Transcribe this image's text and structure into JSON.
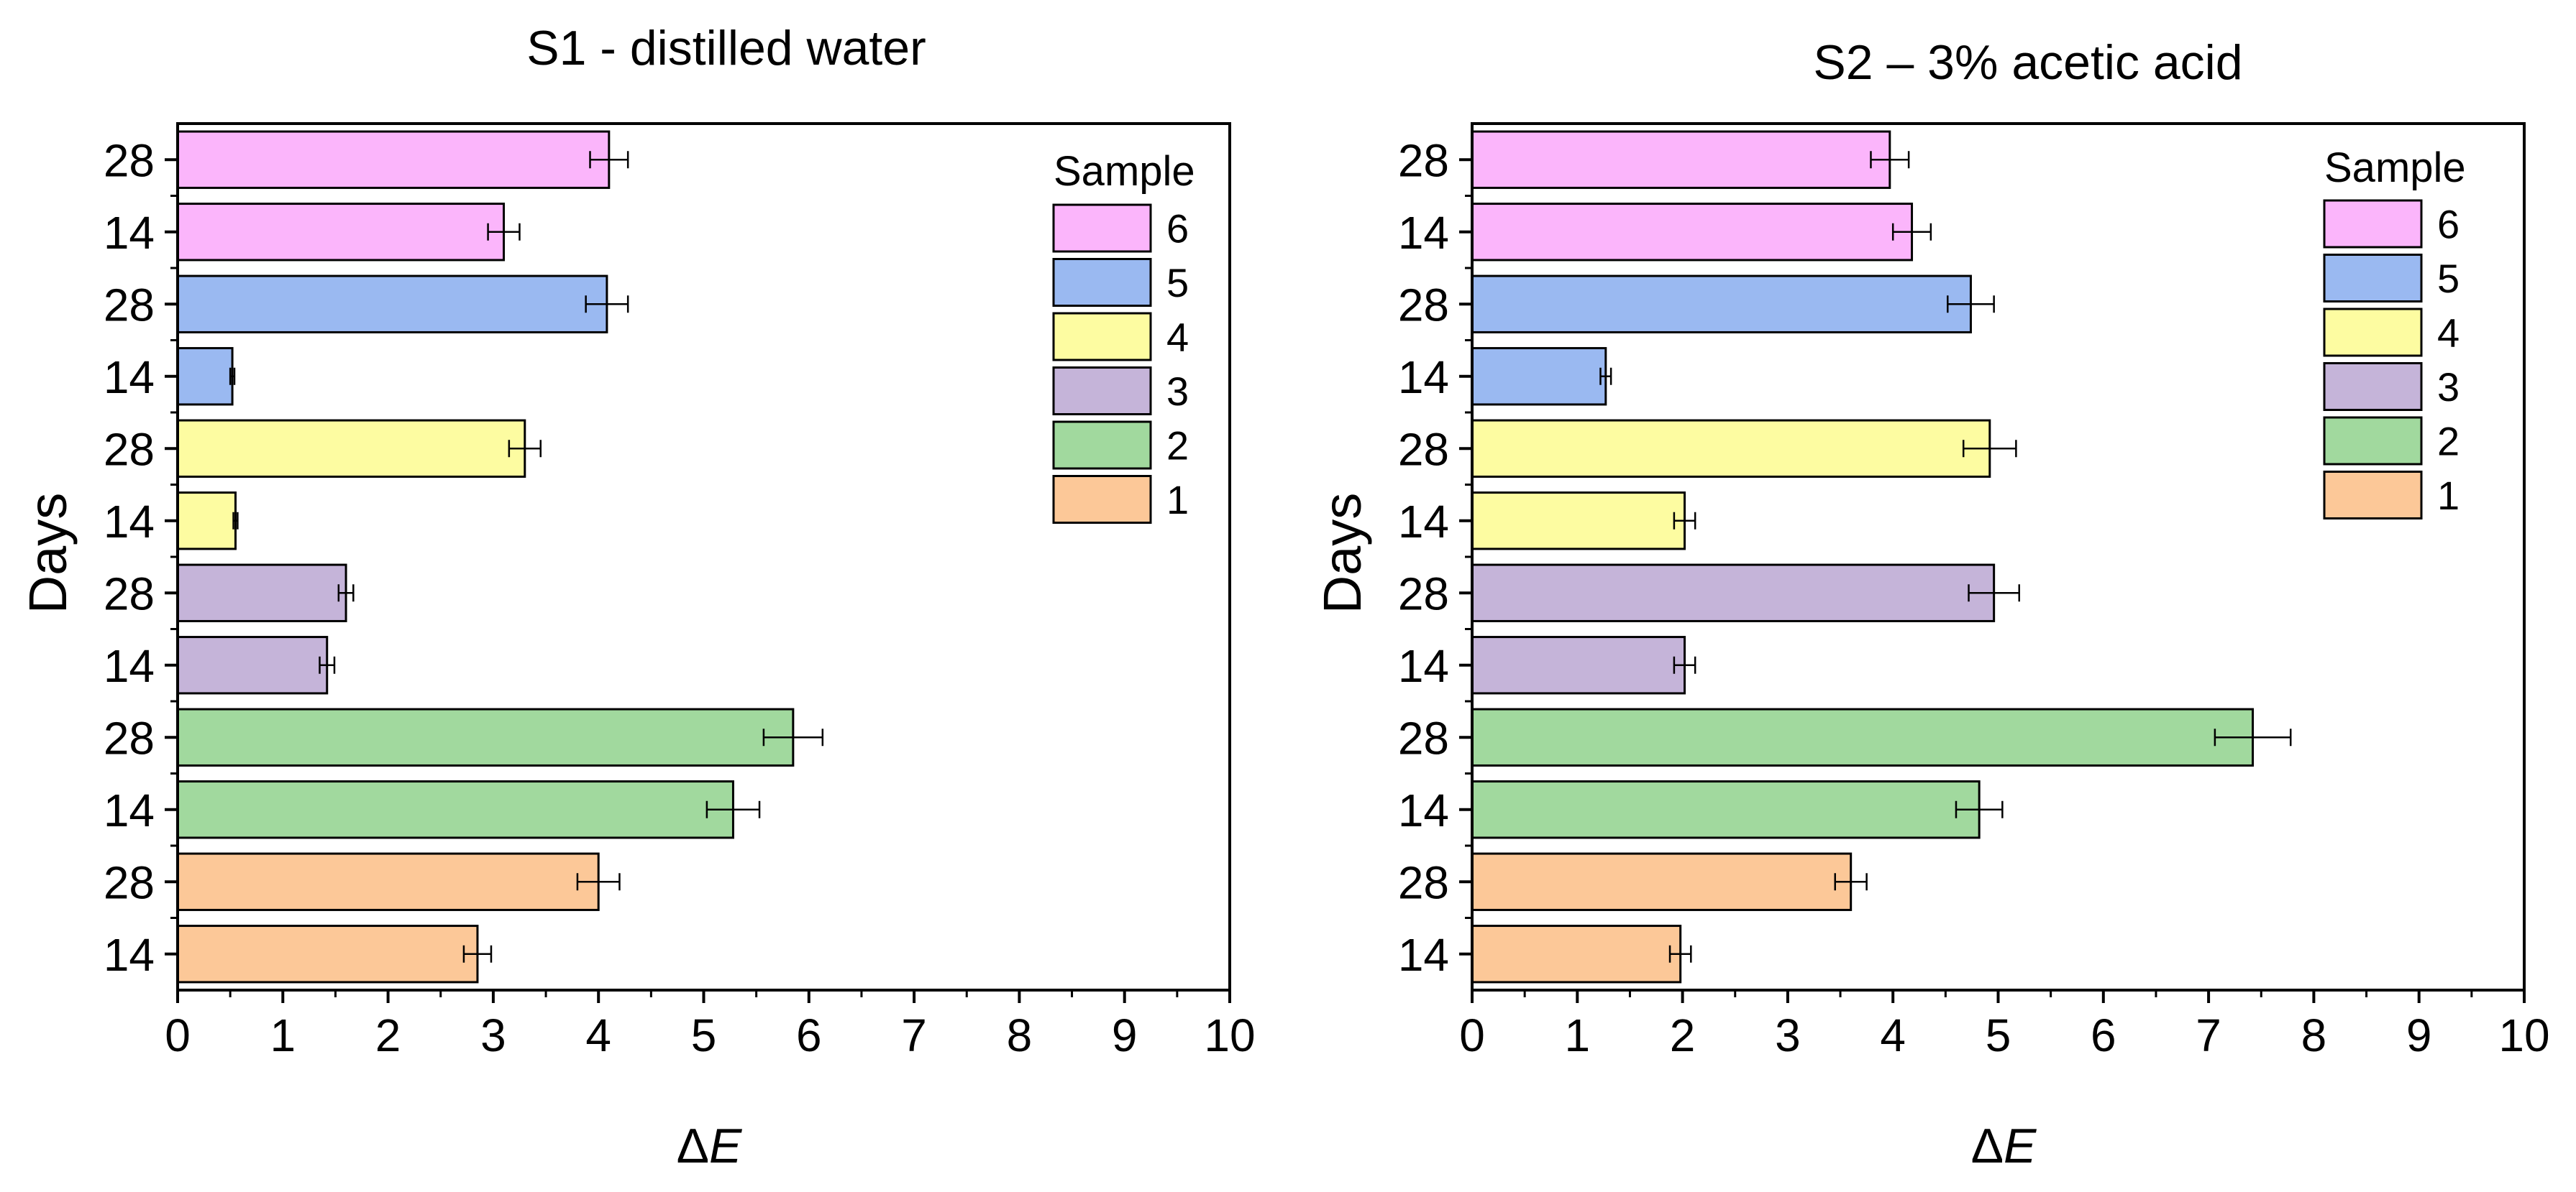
{
  "chart_data": [
    {
      "type": "bar",
      "orientation": "horizontal",
      "title": "S1 - distilled water",
      "xlabel_symbol": "Δ",
      "xlabel_var": "E",
      "ylabel": "Days",
      "xlim": [
        0,
        10
      ],
      "xticks": [
        "0",
        "1",
        "2",
        "3",
        "4",
        "5",
        "6",
        "7",
        "8",
        "9",
        "10"
      ],
      "categories": [
        "14",
        "28",
        "14",
        "28",
        "14",
        "28",
        "14",
        "28",
        "14",
        "28",
        "14",
        "28"
      ],
      "bar_samples": [
        "1",
        "1",
        "2",
        "2",
        "3",
        "3",
        "4",
        "4",
        "5",
        "5",
        "6",
        "6"
      ],
      "values": [
        2.85,
        4.0,
        5.28,
        5.85,
        1.42,
        1.6,
        0.55,
        3.3,
        0.52,
        4.08,
        3.1,
        4.1
      ],
      "errors": [
        0.13,
        0.2,
        0.25,
        0.28,
        0.07,
        0.07,
        0.02,
        0.15,
        0.02,
        0.2,
        0.15,
        0.18
      ],
      "legend": {
        "title": "Sample",
        "position": "top-right",
        "entries": [
          {
            "label": "6",
            "color": "#fbb5fb"
          },
          {
            "label": "5",
            "color": "#9ab9f1"
          },
          {
            "label": "4",
            "color": "#fdfca1"
          },
          {
            "label": "3",
            "color": "#c5b4d9"
          },
          {
            "label": "2",
            "color": "#a1d99e"
          },
          {
            "label": "1",
            "color": "#fcc898"
          }
        ]
      }
    },
    {
      "type": "bar",
      "orientation": "horizontal",
      "title": "S2 – 3% acetic acid",
      "xlabel_symbol": "Δ",
      "xlabel_var": "E",
      "ylabel": "Days",
      "xlim": [
        0,
        10
      ],
      "xticks": [
        "0",
        "1",
        "2",
        "3",
        "4",
        "5",
        "6",
        "7",
        "8",
        "9",
        "10"
      ],
      "categories": [
        "14",
        "28",
        "14",
        "28",
        "14",
        "28",
        "14",
        "28",
        "14",
        "28",
        "14",
        "28"
      ],
      "bar_samples": [
        "1",
        "1",
        "2",
        "2",
        "3",
        "3",
        "4",
        "4",
        "5",
        "5",
        "6",
        "6"
      ],
      "values": [
        1.98,
        3.6,
        4.82,
        7.42,
        2.02,
        4.96,
        2.02,
        4.92,
        1.27,
        4.74,
        4.18,
        3.97
      ],
      "errors": [
        0.1,
        0.15,
        0.22,
        0.36,
        0.1,
        0.24,
        0.1,
        0.25,
        0.05,
        0.22,
        0.18,
        0.18
      ],
      "legend": {
        "title": "Sample",
        "position": "top-right",
        "entries": [
          {
            "label": "6",
            "color": "#fbb5fb"
          },
          {
            "label": "5",
            "color": "#9ab9f1"
          },
          {
            "label": "4",
            "color": "#fdfca1"
          },
          {
            "label": "3",
            "color": "#c5b4d9"
          },
          {
            "label": "2",
            "color": "#a1d99e"
          },
          {
            "label": "1",
            "color": "#fcc898"
          }
        ]
      }
    }
  ],
  "sample_colors": {
    "1": "#fcc898",
    "2": "#a1d99e",
    "3": "#c5b4d9",
    "4": "#fdfca1",
    "5": "#9ab9f1",
    "6": "#fbb5fb"
  }
}
